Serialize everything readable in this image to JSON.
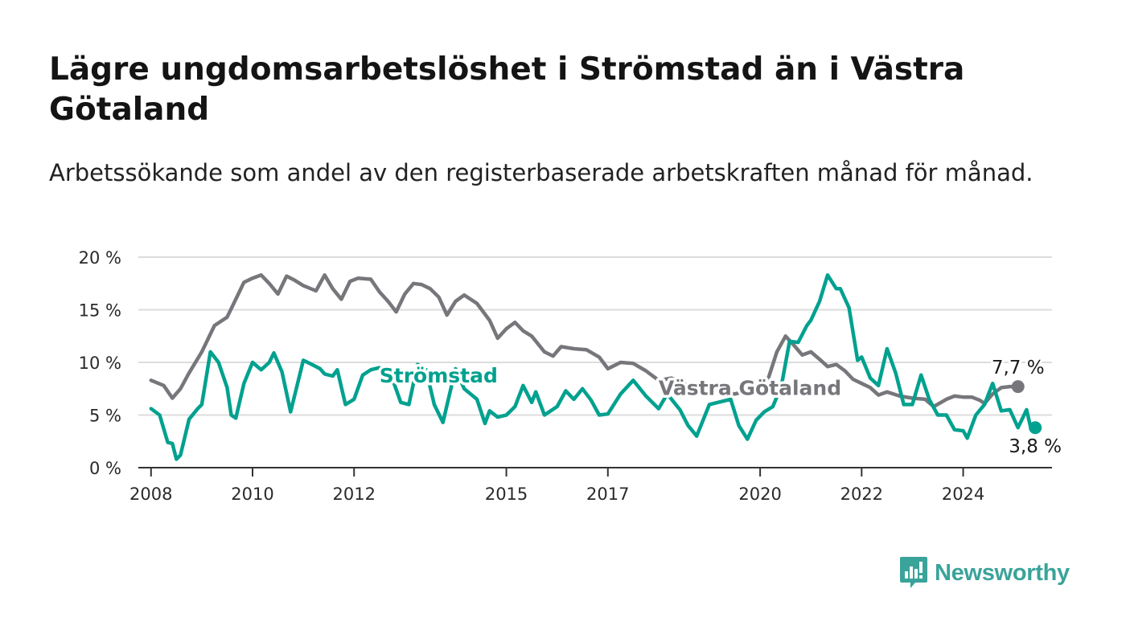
{
  "title": "Lägre ungdomsarbetslöshet i Strömstad än i Västra Götaland",
  "subtitle": "Arbetssökande som andel av den registerbaserade arbetskraften månad för månad.",
  "brand": {
    "name": "Newsworthy",
    "icon": "newsworthy-logo-icon",
    "color": "#3aa39a"
  },
  "chart_data": {
    "type": "line",
    "y_ticks": [
      "0 %",
      "5 %",
      "10 %",
      "15 %",
      "20 %"
    ],
    "ylim": [
      0,
      20
    ],
    "x_ticks": [
      {
        "x": 2008.0,
        "label": "2008"
      },
      {
        "x": 2010.0,
        "label": "2010"
      },
      {
        "x": 2012.0,
        "label": "2012"
      },
      {
        "x": 2015.0,
        "label": "2015"
      },
      {
        "x": 2017.0,
        "label": "2017"
      },
      {
        "x": 2020.0,
        "label": "2020"
      },
      {
        "x": 2022.0,
        "label": "2022"
      },
      {
        "x": 2024.0,
        "label": "2024"
      }
    ],
    "xlim": [
      2007.75,
      2025.75
    ],
    "grid": true,
    "series": [
      {
        "name": "Västra Götaland",
        "color": "#77767b",
        "end_label": "7,7 %",
        "points": [
          [
            2008.0,
            8.3
          ],
          [
            2008.25,
            7.8
          ],
          [
            2008.42,
            6.6
          ],
          [
            2008.58,
            7.5
          ],
          [
            2008.75,
            9.0
          ],
          [
            2009.0,
            11.0
          ],
          [
            2009.25,
            13.5
          ],
          [
            2009.5,
            14.3
          ],
          [
            2009.67,
            16.0
          ],
          [
            2009.83,
            17.6
          ],
          [
            2010.0,
            18.0
          ],
          [
            2010.17,
            18.3
          ],
          [
            2010.33,
            17.5
          ],
          [
            2010.5,
            16.5
          ],
          [
            2010.67,
            18.2
          ],
          [
            2010.83,
            17.8
          ],
          [
            2011.0,
            17.3
          ],
          [
            2011.25,
            16.8
          ],
          [
            2011.42,
            18.3
          ],
          [
            2011.58,
            17.0
          ],
          [
            2011.75,
            16.0
          ],
          [
            2011.92,
            17.7
          ],
          [
            2012.08,
            18.0
          ],
          [
            2012.33,
            17.9
          ],
          [
            2012.5,
            16.7
          ],
          [
            2012.67,
            15.8
          ],
          [
            2012.83,
            14.8
          ],
          [
            2013.0,
            16.5
          ],
          [
            2013.17,
            17.5
          ],
          [
            2013.33,
            17.4
          ],
          [
            2013.5,
            17.0
          ],
          [
            2013.67,
            16.2
          ],
          [
            2013.83,
            14.5
          ],
          [
            2014.0,
            15.8
          ],
          [
            2014.17,
            16.4
          ],
          [
            2014.42,
            15.6
          ],
          [
            2014.67,
            14.0
          ],
          [
            2014.83,
            12.3
          ],
          [
            2015.0,
            13.2
          ],
          [
            2015.17,
            13.8
          ],
          [
            2015.33,
            13.0
          ],
          [
            2015.5,
            12.5
          ],
          [
            2015.75,
            11.0
          ],
          [
            2015.92,
            10.6
          ],
          [
            2016.08,
            11.5
          ],
          [
            2016.33,
            11.3
          ],
          [
            2016.58,
            11.2
          ],
          [
            2016.83,
            10.5
          ],
          [
            2017.0,
            9.4
          ],
          [
            2017.25,
            10.0
          ],
          [
            2017.5,
            9.9
          ],
          [
            2017.75,
            9.2
          ],
          [
            2018.0,
            8.3
          ],
          [
            2018.25,
            8.5
          ],
          [
            2018.5,
            8.0
          ],
          [
            2018.75,
            7.2
          ],
          [
            2019.0,
            7.5
          ],
          [
            2019.25,
            7.2
          ],
          [
            2019.5,
            7.0
          ],
          [
            2019.75,
            7.3
          ],
          [
            2020.0,
            7.8
          ],
          [
            2020.17,
            8.6
          ],
          [
            2020.33,
            11.0
          ],
          [
            2020.5,
            12.5
          ],
          [
            2020.67,
            11.6
          ],
          [
            2020.83,
            10.7
          ],
          [
            2021.0,
            11.0
          ],
          [
            2021.17,
            10.3
          ],
          [
            2021.33,
            9.6
          ],
          [
            2021.5,
            9.8
          ],
          [
            2021.67,
            9.2
          ],
          [
            2021.83,
            8.4
          ],
          [
            2022.0,
            8.0
          ],
          [
            2022.17,
            7.6
          ],
          [
            2022.33,
            6.9
          ],
          [
            2022.5,
            7.2
          ],
          [
            2022.75,
            6.8
          ],
          [
            2023.0,
            6.6
          ],
          [
            2023.25,
            6.5
          ],
          [
            2023.42,
            5.8
          ],
          [
            2023.67,
            6.5
          ],
          [
            2023.83,
            6.8
          ],
          [
            2024.0,
            6.7
          ],
          [
            2024.17,
            6.7
          ],
          [
            2024.33,
            6.4
          ],
          [
            2024.42,
            6.1
          ],
          [
            2024.58,
            7.0
          ],
          [
            2024.75,
            7.6
          ],
          [
            2024.92,
            7.7
          ],
          [
            2025.08,
            7.7
          ]
        ]
      },
      {
        "name": "Strömstad",
        "color": "#00a18f",
        "end_label": "3,8 %",
        "points": [
          [
            2008.0,
            5.6
          ],
          [
            2008.17,
            5.0
          ],
          [
            2008.33,
            2.4
          ],
          [
            2008.42,
            2.3
          ],
          [
            2008.5,
            0.8
          ],
          [
            2008.58,
            1.2
          ],
          [
            2008.75,
            4.6
          ],
          [
            2008.92,
            5.6
          ],
          [
            2009.0,
            6.0
          ],
          [
            2009.17,
            11.0
          ],
          [
            2009.33,
            10.0
          ],
          [
            2009.5,
            7.6
          ],
          [
            2009.58,
            5.0
          ],
          [
            2009.67,
            4.7
          ],
          [
            2009.83,
            8.0
          ],
          [
            2010.0,
            10.0
          ],
          [
            2010.17,
            9.3
          ],
          [
            2010.33,
            10.0
          ],
          [
            2010.42,
            10.9
          ],
          [
            2010.58,
            9.1
          ],
          [
            2010.75,
            5.3
          ],
          [
            2011.0,
            10.2
          ],
          [
            2011.17,
            9.8
          ],
          [
            2011.33,
            9.4
          ],
          [
            2011.42,
            8.9
          ],
          [
            2011.58,
            8.7
          ],
          [
            2011.67,
            9.3
          ],
          [
            2011.83,
            6.0
          ],
          [
            2012.0,
            6.5
          ],
          [
            2012.17,
            8.8
          ],
          [
            2012.33,
            9.3
          ],
          [
            2012.5,
            9.5
          ],
          [
            2012.58,
            8.5
          ],
          [
            2012.75,
            8.5
          ],
          [
            2012.92,
            6.2
          ],
          [
            2013.08,
            6.0
          ],
          [
            2013.25,
            9.8
          ],
          [
            2013.42,
            9.3
          ],
          [
            2013.58,
            6.0
          ],
          [
            2013.75,
            4.3
          ],
          [
            2014.0,
            9.4
          ],
          [
            2014.17,
            7.5
          ],
          [
            2014.42,
            6.5
          ],
          [
            2014.58,
            4.2
          ],
          [
            2014.67,
            5.4
          ],
          [
            2014.83,
            4.8
          ],
          [
            2015.0,
            5.0
          ],
          [
            2015.17,
            5.8
          ],
          [
            2015.33,
            7.8
          ],
          [
            2015.5,
            6.2
          ],
          [
            2015.58,
            7.2
          ],
          [
            2015.75,
            5.0
          ],
          [
            2016.0,
            5.8
          ],
          [
            2016.17,
            7.3
          ],
          [
            2016.33,
            6.5
          ],
          [
            2016.5,
            7.5
          ],
          [
            2016.67,
            6.4
          ],
          [
            2016.83,
            5.0
          ],
          [
            2017.0,
            5.1
          ],
          [
            2017.25,
            7.0
          ],
          [
            2017.5,
            8.3
          ],
          [
            2017.75,
            6.8
          ],
          [
            2018.0,
            5.6
          ],
          [
            2018.17,
            7.0
          ],
          [
            2018.42,
            5.5
          ],
          [
            2018.58,
            4.0
          ],
          [
            2018.75,
            3.0
          ],
          [
            2019.0,
            6.0
          ],
          [
            2019.17,
            6.2
          ],
          [
            2019.42,
            6.5
          ],
          [
            2019.58,
            4.0
          ],
          [
            2019.75,
            2.7
          ],
          [
            2019.92,
            4.5
          ],
          [
            2020.08,
            5.3
          ],
          [
            2020.25,
            5.8
          ],
          [
            2020.42,
            7.8
          ],
          [
            2020.58,
            12.0
          ],
          [
            2020.75,
            11.9
          ],
          [
            2020.92,
            13.5
          ],
          [
            2021.0,
            14.0
          ],
          [
            2021.17,
            15.8
          ],
          [
            2021.33,
            18.3
          ],
          [
            2021.5,
            17.0
          ],
          [
            2021.58,
            17.0
          ],
          [
            2021.75,
            15.2
          ],
          [
            2021.92,
            10.2
          ],
          [
            2022.0,
            10.5
          ],
          [
            2022.17,
            8.5
          ],
          [
            2022.33,
            7.8
          ],
          [
            2022.5,
            11.3
          ],
          [
            2022.67,
            9.0
          ],
          [
            2022.83,
            6.0
          ],
          [
            2023.0,
            6.0
          ],
          [
            2023.17,
            8.8
          ],
          [
            2023.33,
            6.5
          ],
          [
            2023.5,
            5.0
          ],
          [
            2023.67,
            5.0
          ],
          [
            2023.83,
            3.6
          ],
          [
            2024.0,
            3.5
          ],
          [
            2024.08,
            2.8
          ],
          [
            2024.25,
            5.0
          ],
          [
            2024.42,
            6.0
          ],
          [
            2024.58,
            8.0
          ],
          [
            2024.75,
            5.4
          ],
          [
            2024.92,
            5.5
          ],
          [
            2025.08,
            3.8
          ],
          [
            2025.25,
            5.5
          ],
          [
            2025.33,
            3.8
          ],
          [
            2025.42,
            3.8
          ]
        ]
      }
    ]
  }
}
